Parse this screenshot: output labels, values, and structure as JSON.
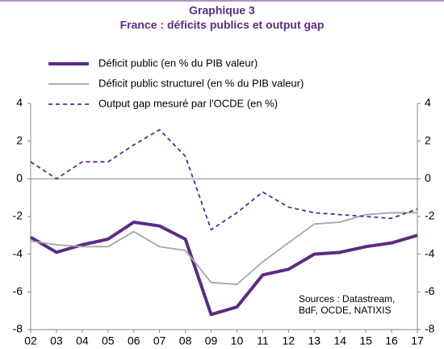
{
  "chart_data": {
    "type": "line",
    "title": "Graphique 3",
    "subtitle": "France : déficits publics et output gap",
    "categories": [
      "02",
      "03",
      "04",
      "05",
      "06",
      "07",
      "08",
      "09",
      "10",
      "11",
      "12",
      "13",
      "14",
      "15",
      "16",
      "17"
    ],
    "series": [
      {
        "name": "Déficit public (en % du PIB valeur)",
        "color": "#5a2c82",
        "style": "thick",
        "values": [
          -3.1,
          -3.9,
          -3.5,
          -3.2,
          -2.3,
          -2.5,
          -3.2,
          -7.2,
          -6.8,
          -5.1,
          -4.8,
          -4.0,
          -3.9,
          -3.6,
          -3.4,
          -3.0
        ]
      },
      {
        "name": "Déficit public structurel (en % du PIB valeur)",
        "color": "#a6a6a6",
        "style": "thin",
        "values": [
          -3.3,
          -3.5,
          -3.6,
          -3.6,
          -2.8,
          -3.6,
          -3.8,
          -5.5,
          -5.6,
          -4.4,
          -3.4,
          -2.4,
          -2.3,
          -1.9,
          -1.8,
          -1.8
        ]
      },
      {
        "name": "Output gap mesuré par l'OCDE (en %)",
        "color": "#5a2c82",
        "style": "dashed",
        "values": [
          0.9,
          0.0,
          0.9,
          0.9,
          1.8,
          2.6,
          1.2,
          -2.7,
          -1.8,
          -0.7,
          -1.5,
          -1.8,
          -1.9,
          -2.0,
          -2.1,
          -1.6
        ]
      }
    ],
    "ylim": [
      -8,
      4
    ],
    "yticks": [
      -8,
      -6,
      -4,
      -2,
      0,
      2,
      4
    ],
    "y2lim": [
      -8,
      4
    ],
    "y2ticks": [
      -8,
      -6,
      -4,
      -2,
      0,
      2,
      4
    ],
    "annotation_lines": [
      "Sources : Datastream,",
      "BdF, OCDE, NATIXIS"
    ]
  }
}
